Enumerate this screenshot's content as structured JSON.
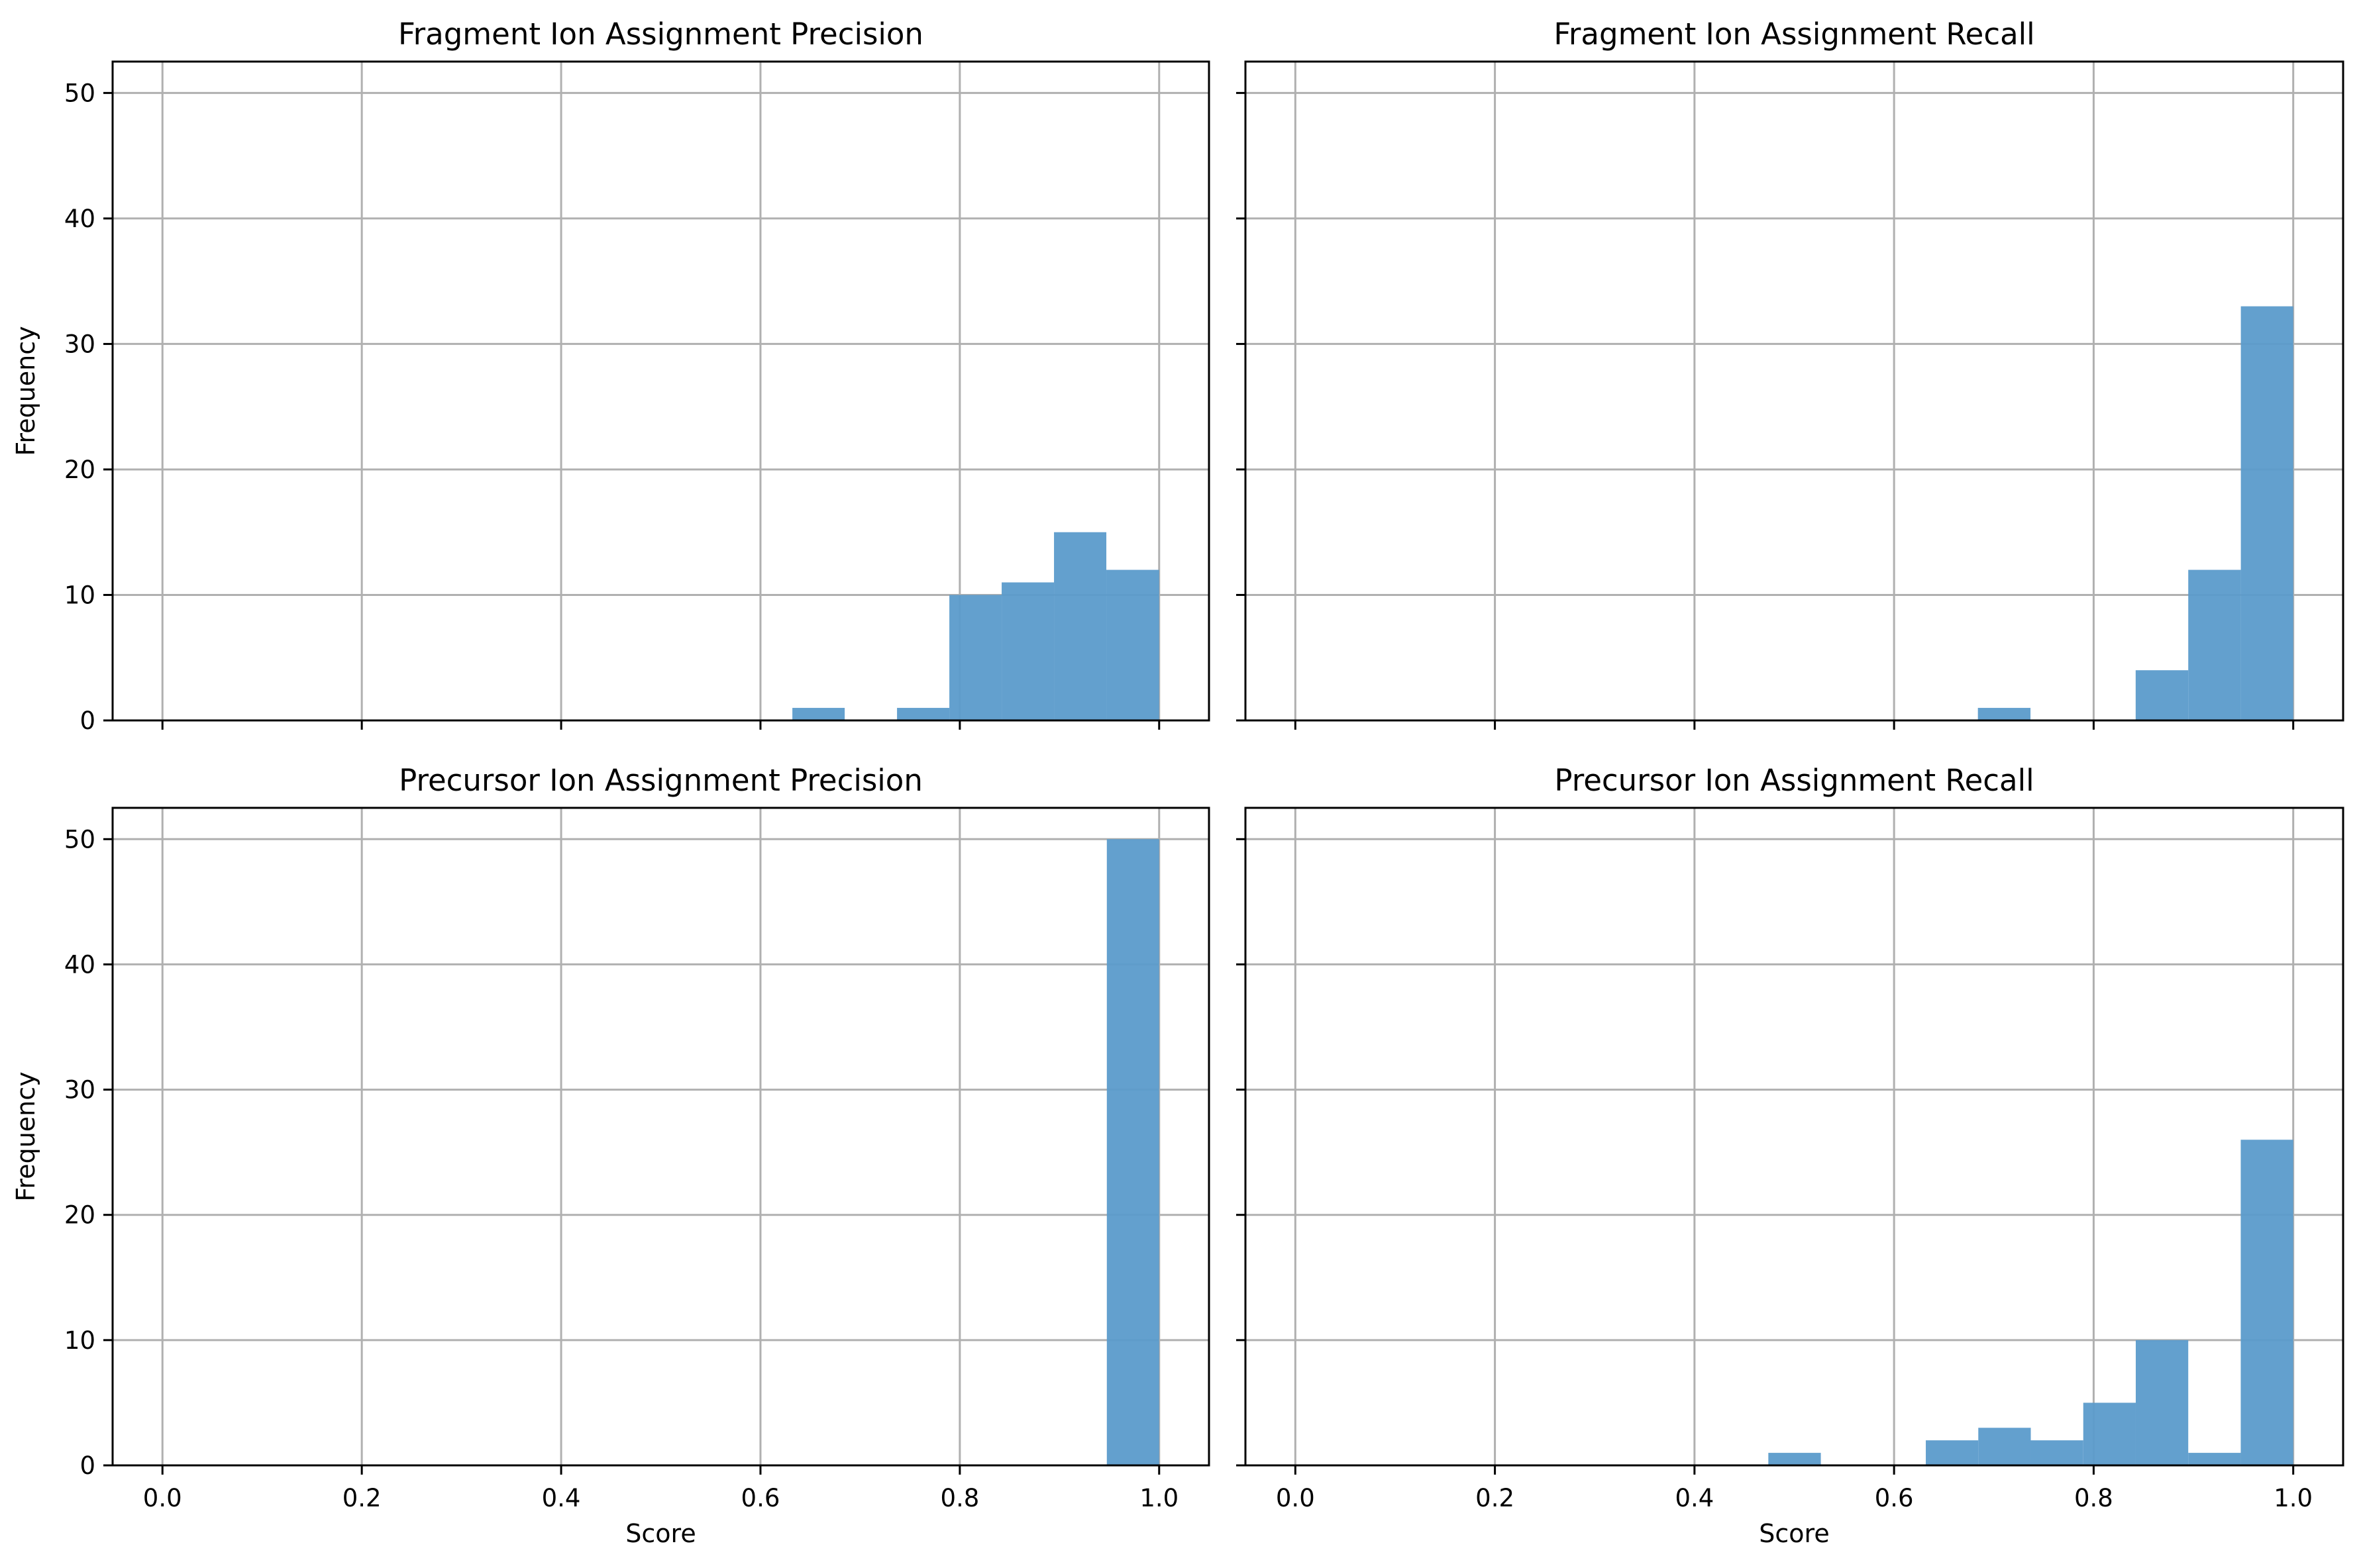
{
  "figure": {
    "bar_color": "#5b9bcb",
    "grid_color": "#b0b0b0",
    "bar_alpha": 0.95
  },
  "chart_data": [
    {
      "type": "bar",
      "kind": "histogram",
      "title": "Fragment Ion Assignment Precision",
      "xlabel": "",
      "ylabel": "Frequency",
      "xlim": [
        -0.05,
        1.05
      ],
      "ylim": [
        0,
        52.5
      ],
      "xticks": [
        "0.0",
        "0.2",
        "0.4",
        "0.6",
        "0.8",
        "1.0"
      ],
      "yticks": [
        "0",
        "10",
        "20",
        "30",
        "40",
        "50"
      ],
      "show_xticklabels": false,
      "show_yticklabels": true,
      "grid": true,
      "bin_edges": [
        0.632,
        0.6845,
        0.737,
        0.7895,
        0.842,
        0.8945,
        0.947,
        1.0
      ],
      "values": [
        1,
        0,
        1,
        10,
        11,
        15,
        12
      ]
    },
    {
      "type": "bar",
      "kind": "histogram",
      "title": "Fragment Ion Assignment Recall",
      "xlabel": "",
      "ylabel": "",
      "xlim": [
        -0.05,
        1.05
      ],
      "ylim": [
        0,
        52.5
      ],
      "xticks": [
        "0.0",
        "0.2",
        "0.4",
        "0.6",
        "0.8",
        "1.0"
      ],
      "yticks": [
        "0",
        "10",
        "20",
        "30",
        "40",
        "50"
      ],
      "show_xticklabels": false,
      "show_yticklabels": false,
      "grid": true,
      "bin_edges": [
        0.684,
        0.7367,
        0.7894,
        0.8421,
        0.8948,
        0.9475,
        1.0
      ],
      "values": [
        1,
        0,
        0,
        4,
        12,
        33
      ]
    },
    {
      "type": "bar",
      "kind": "histogram",
      "title": "Precursor Ion Assignment Precision",
      "xlabel": "Score",
      "ylabel": "Frequency",
      "xlim": [
        -0.05,
        1.05
      ],
      "ylim": [
        0,
        52.5
      ],
      "xticks": [
        "0.0",
        "0.2",
        "0.4",
        "0.6",
        "0.8",
        "1.0"
      ],
      "yticks": [
        "0",
        "10",
        "20",
        "30",
        "40",
        "50"
      ],
      "show_xticklabels": true,
      "show_yticklabels": true,
      "grid": true,
      "bin_edges": [
        0.9475,
        1.0
      ],
      "values": [
        50
      ]
    },
    {
      "type": "bar",
      "kind": "histogram",
      "title": "Precursor Ion Assignment Recall",
      "xlabel": "Score",
      "ylabel": "",
      "xlim": [
        -0.05,
        1.05
      ],
      "ylim": [
        0,
        52.5
      ],
      "xticks": [
        "0.0",
        "0.2",
        "0.4",
        "0.6",
        "0.8",
        "1.0"
      ],
      "yticks": [
        "0",
        "10",
        "20",
        "30",
        "40",
        "50"
      ],
      "show_xticklabels": true,
      "show_yticklabels": false,
      "grid": true,
      "bin_edges": [
        0.474,
        0.5266,
        0.5792,
        0.6318,
        0.6844,
        0.737,
        0.7896,
        0.8422,
        0.8948,
        0.9474,
        1.0
      ],
      "values": [
        1,
        0,
        0,
        2,
        3,
        2,
        5,
        10,
        1,
        26
      ]
    }
  ]
}
